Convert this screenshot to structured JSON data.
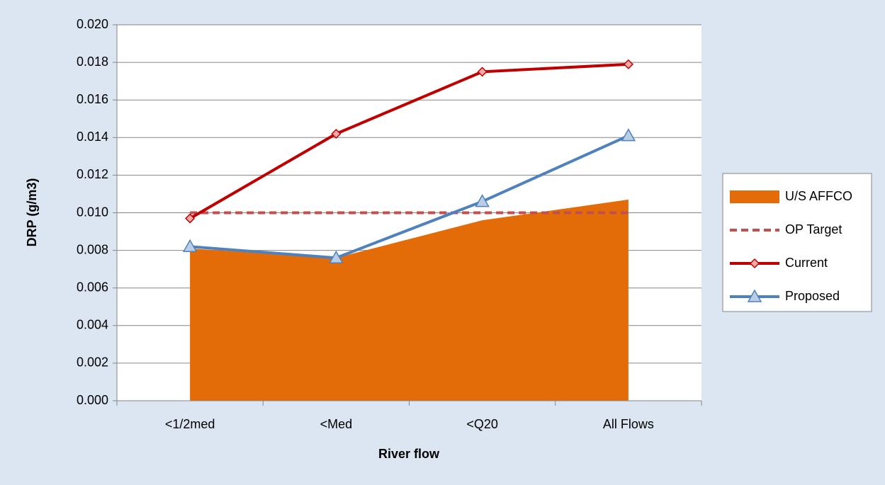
{
  "chart_data": {
    "type": "line",
    "y_label": "DRP (g/m3)",
    "x_label": "River flow",
    "categories": [
      "<1/2med",
      "<Med",
      "<Q20",
      "All Flows"
    ],
    "series": [
      {
        "name": "U/S AFFCO",
        "color": "#e36c09",
        "style": "area",
        "values": [
          0.0081,
          0.0076,
          0.0096,
          0.0107
        ]
      },
      {
        "name": "OP Target",
        "color": "#c0504d",
        "style": "dashed",
        "values": [
          0.01,
          0.01,
          0.01,
          0.01
        ]
      },
      {
        "name": "Current",
        "color": "#c00000",
        "style": "solid",
        "marker": "diamond",
        "values": [
          0.0097,
          0.0142,
          0.0175,
          0.0179
        ]
      },
      {
        "name": "Proposed",
        "color": "#4f81bd",
        "style": "solid",
        "marker": "triangle",
        "values": [
          0.0082,
          0.0076,
          0.0106,
          0.0141
        ]
      }
    ],
    "ylim": [
      0,
      0.02
    ],
    "yticks": [
      {
        "value": 0,
        "label": "0.000"
      },
      {
        "value": 0.002,
        "label": "0.002"
      },
      {
        "value": 0.004,
        "label": "0.004"
      },
      {
        "value": 0.006,
        "label": "0.006"
      },
      {
        "value": 0.008,
        "label": "0.008"
      },
      {
        "value": 0.01,
        "label": "0.010"
      },
      {
        "value": 0.012,
        "label": "0.012"
      },
      {
        "value": 0.014,
        "label": "0.014"
      },
      {
        "value": 0.016,
        "label": "0.016"
      },
      {
        "value": 0.018,
        "label": "0.018"
      },
      {
        "value": 0.02,
        "label": "0.020"
      }
    ],
    "grid": true,
    "legend": "right"
  }
}
